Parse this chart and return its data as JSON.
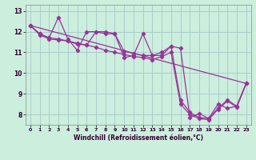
{
  "xlabel": "Windchill (Refroidissement éolien,°C)",
  "xlim": [
    -0.5,
    23.5
  ],
  "ylim": [
    7.5,
    13.3
  ],
  "yticks": [
    8,
    9,
    10,
    11,
    12,
    13
  ],
  "xticks": [
    0,
    1,
    2,
    3,
    4,
    5,
    6,
    7,
    8,
    9,
    10,
    11,
    12,
    13,
    14,
    15,
    16,
    17,
    18,
    19,
    20,
    21,
    22,
    23
  ],
  "bg_color": "#cceedd",
  "grid_color": "#aacccc",
  "line_color": "#993399",
  "lines": [
    {
      "x": [
        0,
        1,
        2,
        3,
        4,
        5,
        6,
        7,
        8,
        9,
        10,
        11,
        12,
        13,
        14,
        15,
        16,
        17,
        18,
        19,
        20,
        21,
        22,
        23
      ],
      "y": [
        12.3,
        11.9,
        11.7,
        12.7,
        11.65,
        11.1,
        12.0,
        12.0,
        12.0,
        11.9,
        10.75,
        10.85,
        11.9,
        10.85,
        11.0,
        11.3,
        8.7,
        8.1,
        7.85,
        7.8,
        8.3,
        8.7,
        8.4,
        9.5
      ]
    },
    {
      "x": [
        0,
        23
      ],
      "y": [
        12.3,
        9.5
      ]
    },
    {
      "x": [
        0,
        1,
        2,
        3,
        4,
        5,
        6,
        7,
        8,
        9,
        10,
        11,
        12,
        13,
        14,
        15,
        16,
        17,
        18,
        19,
        20,
        21,
        22,
        23
      ],
      "y": [
        12.3,
        11.9,
        11.7,
        11.65,
        11.55,
        11.45,
        11.35,
        12.0,
        11.9,
        11.9,
        11.05,
        10.95,
        10.85,
        10.85,
        10.85,
        11.3,
        11.2,
        7.85,
        8.05,
        7.8,
        8.5,
        8.3,
        8.4,
        9.5
      ]
    },
    {
      "x": [
        0,
        1,
        2,
        3,
        4,
        5,
        6,
        7,
        8,
        9,
        10,
        11,
        12,
        13,
        14,
        15,
        16,
        17,
        18,
        19,
        20,
        21,
        22,
        23
      ],
      "y": [
        12.3,
        11.85,
        11.65,
        11.6,
        11.55,
        11.4,
        11.35,
        11.25,
        11.1,
        11.0,
        10.9,
        10.8,
        10.75,
        10.65,
        10.8,
        11.0,
        8.5,
        8.0,
        7.8,
        7.75,
        8.25,
        8.65,
        8.35,
        9.5
      ]
    }
  ]
}
